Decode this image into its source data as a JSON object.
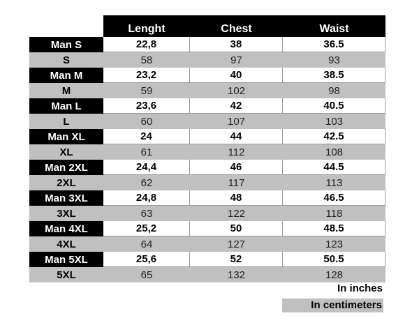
{
  "headers": [
    "Lenght",
    "Chest",
    "Waist"
  ],
  "sizes": [
    {
      "inch_label": "Man S",
      "inches": [
        "22,8",
        "38",
        "36.5"
      ],
      "cm_label": "S",
      "cm": [
        "58",
        "97",
        "93"
      ]
    },
    {
      "inch_label": "Man M",
      "inches": [
        "23,2",
        "40",
        "38.5"
      ],
      "cm_label": "M",
      "cm": [
        "59",
        "102",
        "98"
      ]
    },
    {
      "inch_label": "Man L",
      "inches": [
        "23,6",
        "42",
        "40.5"
      ],
      "cm_label": "L",
      "cm": [
        "60",
        "107",
        "103"
      ]
    },
    {
      "inch_label": "Man XL",
      "inches": [
        "24",
        "44",
        "42.5"
      ],
      "cm_label": "XL",
      "cm": [
        "61",
        "112",
        "108"
      ]
    },
    {
      "inch_label": "Man 2XL",
      "inches": [
        "24,4",
        "46",
        "44.5"
      ],
      "cm_label": "2XL",
      "cm": [
        "62",
        "117",
        "113"
      ]
    },
    {
      "inch_label": "Man 3XL",
      "inches": [
        "24,8",
        "48",
        "46.5"
      ],
      "cm_label": "3XL",
      "cm": [
        "63",
        "122",
        "118"
      ]
    },
    {
      "inch_label": "Man 4XL",
      "inches": [
        "25,2",
        "50",
        "48.5"
      ],
      "cm_label": "4XL",
      "cm": [
        "64",
        "127",
        "123"
      ]
    },
    {
      "inch_label": "Man 5XL",
      "inches": [
        "25,6",
        "52",
        "50.5"
      ],
      "cm_label": "5XL",
      "cm": [
        "65",
        "132",
        "128"
      ]
    }
  ],
  "legend": {
    "inches": "In inches",
    "centimeters": "In centimeters"
  },
  "colors": {
    "header": "#000000",
    "cm_row": "#c0c0c0"
  }
}
